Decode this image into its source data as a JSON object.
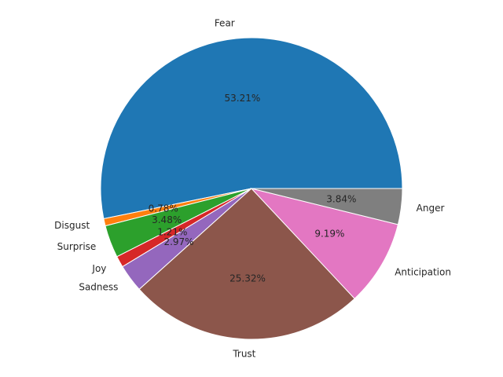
{
  "chart_data": {
    "type": "pie",
    "start_angle_deg": 0,
    "direction": "counterclockwise",
    "slices": [
      {
        "label": "Fear",
        "value": 53.21,
        "pct_text": "53.21%",
        "color": "#1f77b4"
      },
      {
        "label": "Disgust",
        "value": 0.78,
        "pct_text": "0.78%",
        "color": "#ff7f0e"
      },
      {
        "label": "Surprise",
        "value": 3.48,
        "pct_text": "3.48%",
        "color": "#2ca02c"
      },
      {
        "label": "Joy",
        "value": 1.21,
        "pct_text": "1.21%",
        "color": "#d62728"
      },
      {
        "label": "Sadness",
        "value": 2.97,
        "pct_text": "2.97%",
        "color": "#9467bd"
      },
      {
        "label": "Trust",
        "value": 25.32,
        "pct_text": "25.32%",
        "color": "#8c564b"
      },
      {
        "label": "Anticipation",
        "value": 9.19,
        "pct_text": "9.19%",
        "color": "#e377c2"
      },
      {
        "label": "Anger",
        "value": 3.84,
        "pct_text": "3.84%",
        "color": "#7f7f7f"
      }
    ]
  }
}
